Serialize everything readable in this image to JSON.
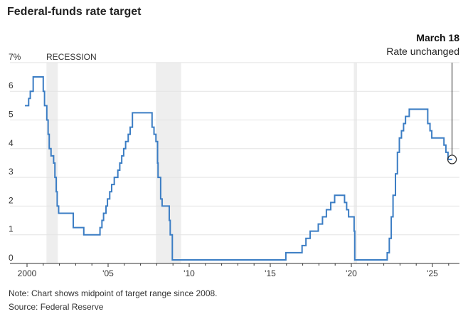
{
  "chart_data": {
    "type": "line",
    "step": true,
    "title": "Federal-funds rate target",
    "xlabel": "",
    "ylabel": "",
    "x_ticks": [
      {
        "value": 2000,
        "label": "2000"
      },
      {
        "value": 2005,
        "label": "'05"
      },
      {
        "value": 2010,
        "label": "'10"
      },
      {
        "value": 2015,
        "label": "'15"
      },
      {
        "value": 2020,
        "label": "'20"
      },
      {
        "value": 2025,
        "label": "'25"
      }
    ],
    "y_ticks": [
      {
        "value": 0,
        "label": "0"
      },
      {
        "value": 1,
        "label": "1"
      },
      {
        "value": 2,
        "label": "2"
      },
      {
        "value": 3,
        "label": "3"
      },
      {
        "value": 4,
        "label": "4"
      },
      {
        "value": 5,
        "label": "5"
      },
      {
        "value": 6,
        "label": "6"
      },
      {
        "value": 7,
        "label": "7%"
      }
    ],
    "xlim": [
      1999.8,
      2026.8
    ],
    "ylim": [
      0,
      7
    ],
    "grid": true,
    "line_color": "#3b7dc4",
    "recession_color": "#eeeeee",
    "recession_label": "RECESSION",
    "recessions": [
      [
        2001.2,
        2001.9
      ],
      [
        2007.95,
        2009.5
      ],
      [
        2020.15,
        2020.35
      ]
    ],
    "series": [
      {
        "x": [
          1999.87,
          2000.1,
          2000.2,
          2000.38,
          2001.0,
          2001.08,
          2001.22,
          2001.3,
          2001.37,
          2001.48,
          2001.64,
          2001.72,
          2001.8,
          2001.86,
          2001.95,
          2002.85,
          2003.5,
          2004.5,
          2004.62,
          2004.72,
          2004.87,
          2004.96,
          2005.1,
          2005.22,
          2005.38,
          2005.6,
          2005.72,
          2005.84,
          2005.96,
          2006.08,
          2006.24,
          2006.36,
          2006.5,
          2007.71,
          2007.83,
          2007.95,
          2008.05,
          2008.08,
          2008.24,
          2008.33,
          2008.77,
          2008.83,
          2008.96,
          2015.96,
          2016.96,
          2017.2,
          2017.46,
          2017.96,
          2018.22,
          2018.46,
          2018.73,
          2018.97,
          2019.58,
          2019.71,
          2019.83,
          2020.17,
          2020.21,
          2022.21,
          2022.34,
          2022.46,
          2022.57,
          2022.72,
          2022.84,
          2022.96,
          2023.09,
          2023.22,
          2023.34,
          2023.57,
          2024.71,
          2024.85,
          2024.96,
          2025.71,
          2025.83,
          2025.96,
          2026.21
        ],
        "y": [
          5.5,
          5.75,
          6.0,
          6.5,
          6.0,
          5.5,
          5.0,
          4.5,
          4.0,
          3.75,
          3.5,
          3.0,
          2.5,
          2.0,
          1.75,
          1.25,
          1.0,
          1.25,
          1.5,
          1.75,
          2.0,
          2.25,
          2.5,
          2.75,
          3.0,
          3.25,
          3.5,
          3.75,
          4.0,
          4.25,
          4.5,
          4.75,
          5.25,
          4.75,
          4.5,
          4.25,
          3.5,
          3.0,
          2.25,
          2.0,
          1.5,
          1.0,
          0.125,
          0.375,
          0.625,
          0.875,
          1.125,
          1.375,
          1.625,
          1.875,
          2.125,
          2.375,
          2.125,
          1.875,
          1.625,
          1.125,
          0.125,
          0.375,
          0.875,
          1.625,
          2.375,
          3.125,
          3.875,
          4.375,
          4.625,
          4.875,
          5.125,
          5.375,
          4.875,
          4.625,
          4.375,
          4.125,
          3.875,
          3.625,
          3.625
        ]
      }
    ],
    "annotation": {
      "date": "March 18",
      "text": "Rate unchanged",
      "x": 2026.21,
      "y": 3.625
    }
  },
  "note": "Note: Chart shows midpoint of target range since 2008.",
  "source": "Source: Federal Reserve"
}
